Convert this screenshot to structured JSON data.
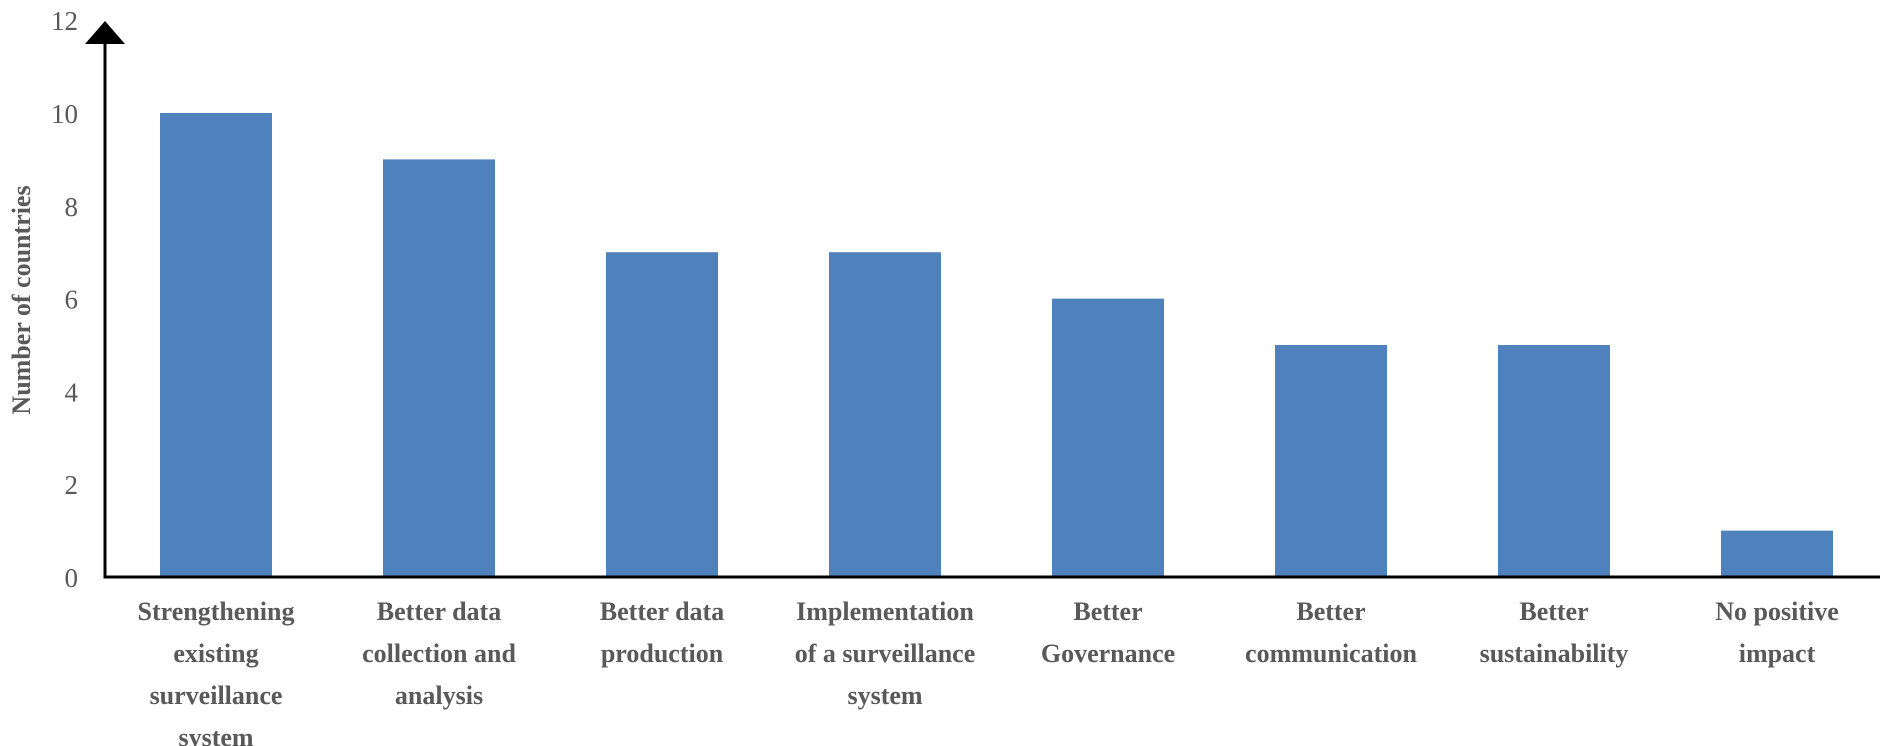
{
  "chart_data": {
    "type": "bar",
    "title": "",
    "xlabel": "",
    "ylabel": "Number of countries",
    "ylim": [
      0,
      12
    ],
    "yticks": [
      0,
      2,
      4,
      6,
      8,
      10,
      12
    ],
    "grid": false,
    "categories": [
      [
        "Strengthening",
        "existing",
        "surveillance",
        "system"
      ],
      [
        "Better data",
        "collection and",
        "analysis"
      ],
      [
        "Better data",
        "production"
      ],
      [
        "Implementation",
        "of a surveillance",
        "system"
      ],
      [
        "Better",
        "Governance"
      ],
      [
        "Better",
        "communication"
      ],
      [
        "Better",
        "sustainability"
      ],
      [
        "No positive",
        "impact"
      ]
    ],
    "values": [
      10,
      9,
      7,
      7,
      6,
      5,
      5,
      1
    ],
    "colors": {
      "bar": "#4F81BD",
      "axis": "#000000",
      "text": "#595959"
    }
  }
}
